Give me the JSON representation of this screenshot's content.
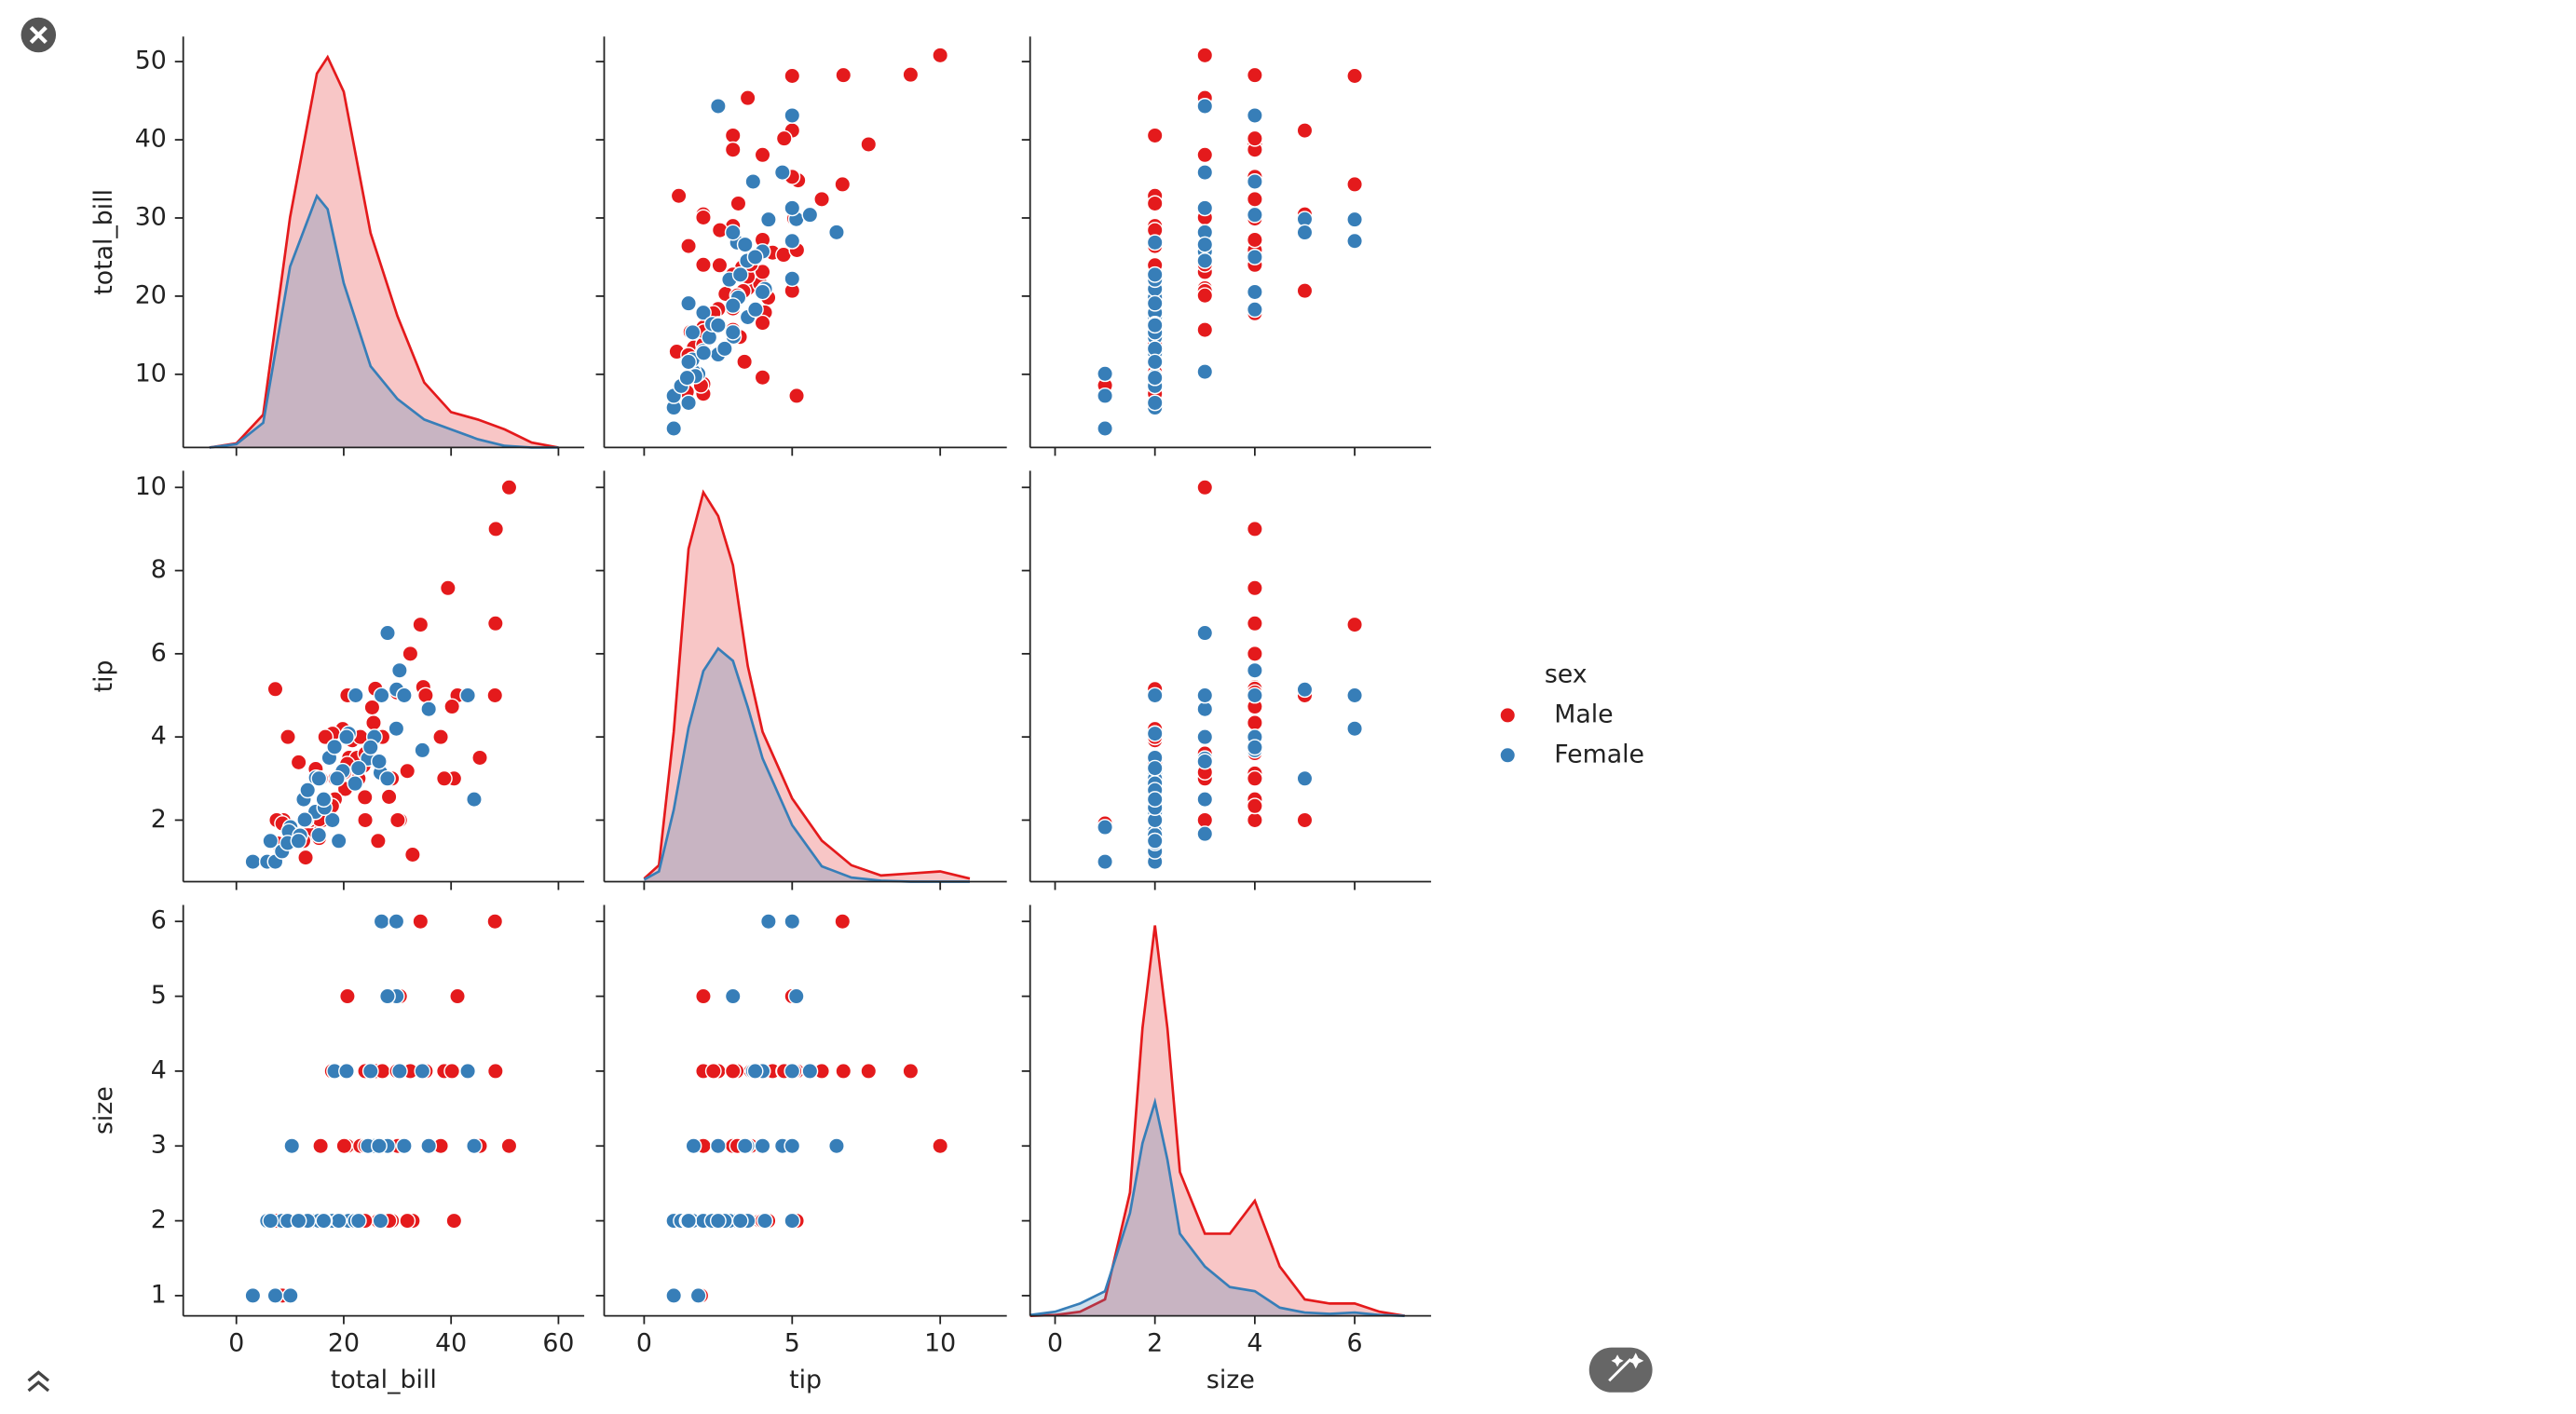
{
  "chart_data": {
    "type": "pairplot",
    "legend_title": "sex",
    "variables": [
      {
        "label": "total_bill",
        "xlim": [
          -9.9,
          64.8
        ],
        "xticks": [
          0,
          20,
          40,
          60
        ],
        "ylim": [
          0.64,
          53.2
        ],
        "yticks": [
          10,
          20,
          30,
          40,
          50
        ],
        "kde_x": [
          -5,
          0,
          5,
          10,
          15,
          17,
          20,
          25,
          30,
          35,
          40,
          45,
          50,
          55,
          60
        ],
        "y2lim": [
          0,
          0.05
        ]
      },
      {
        "label": "tip",
        "xlim": [
          -1.35,
          12.25
        ],
        "xticks": [
          0,
          5,
          10
        ],
        "ylim": [
          0.52,
          10.4
        ],
        "yticks": [
          2,
          4,
          6,
          8,
          10
        ],
        "kde_x": [
          0,
          0.5,
          1,
          1.5,
          2,
          2.5,
          3,
          3.5,
          4,
          5,
          6,
          7,
          8,
          9,
          10,
          11
        ],
        "y2lim": [
          0,
          0.4
        ]
      },
      {
        "label": "size",
        "xlim": [
          -0.5,
          7.53
        ],
        "xticks": [
          0,
          2,
          4,
          6
        ],
        "ylim": [
          0.73,
          6.22
        ],
        "yticks": [
          1,
          2,
          3,
          4,
          5,
          6
        ],
        "kde_x": [
          -0.5,
          0,
          0.5,
          1,
          1.5,
          1.75,
          2,
          2.25,
          2.5,
          3,
          3.5,
          4,
          4.5,
          5,
          5.5,
          6,
          6.5,
          7
        ],
        "y2lim": [
          0,
          1
        ]
      }
    ],
    "series": [
      {
        "name": "Male",
        "color": "#e41a1c",
        "columns": [
          [
            50.81,
            48.33,
            7.25,
            48.27,
            39.42,
            32.4,
            34.81,
            25.56,
            24.59,
            20.29,
            10.34,
            21.01,
            23.68,
            25.29,
            8.77,
            26.88,
            15.04,
            14.78,
            10.27,
            35.26,
            15.42,
            18.43,
            21.58,
            13.42,
            28.97,
            22.49,
            40.55,
            20.69,
            30.46,
            41.19,
            48.17,
            34.3,
            28.44,
            9.6,
            38.07,
            12.9,
            15.69,
            19.81,
            20.65,
            17.92,
            45.35,
            7.74,
            30.06,
            25.89,
            27.2,
            22.76,
            11.61,
            18.35,
            7.51,
            23.1,
            16.58,
            12.46,
            24.01,
            13.81,
            20.08,
            16.0,
            8.58,
            32.83,
            17.81,
            26.41,
            15.48,
            23.95,
            31.85,
            38.73,
            40.17,
            29.93,
            24.06
          ],
          [
            10,
            9,
            5.15,
            6.73,
            7.58,
            6,
            5.2,
            4.34,
            3.61,
            2.75,
            1.66,
            3.5,
            3.31,
            4.71,
            2,
            3.12,
            1.96,
            3.23,
            1.71,
            5,
            1.57,
            3,
            3.92,
            1.68,
            3,
            3.5,
            3,
            5,
            2,
            5,
            5,
            6.7,
            2.56,
            4,
            4,
            1.1,
            3,
            4.19,
            3.35,
            4.08,
            3.5,
            1.44,
            2,
            5.16,
            4,
            3,
            3.39,
            2.5,
            2,
            4,
            4,
            1.5,
            2,
            2,
            3.15,
            2,
            1.92,
            1.17,
            2.34,
            1.5,
            2.02,
            2.55,
            3.18,
            3,
            4.73,
            5.07,
            3.6
          ],
          [
            3,
            4,
            2,
            4,
            4,
            4,
            4,
            4,
            4,
            2,
            3,
            3,
            2,
            4,
            2,
            4,
            2,
            2,
            2,
            4,
            2,
            4,
            2,
            2,
            2,
            2,
            2,
            5,
            5,
            5,
            6,
            6,
            2,
            2,
            3,
            2,
            3,
            2,
            3,
            2,
            3,
            2,
            3,
            4,
            4,
            2,
            2,
            4,
            2,
            3,
            2,
            2,
            4,
            2,
            3,
            2,
            1,
            2,
            4,
            2,
            2,
            2,
            2,
            4,
            4,
            4,
            3
          ]
        ],
        "kde": [
          [
            0,
            0.0005,
            0.004,
            0.028,
            0.0455,
            0.0475,
            0.0433,
            0.0261,
            0.016,
            0.0079,
            0.0043,
            0.0034,
            0.0022,
            0.0006,
            0
          ],
          [
            0.003,
            0.016,
            0.146,
            0.324,
            0.379,
            0.356,
            0.308,
            0.21,
            0.146,
            0.081,
            0.04,
            0.016,
            0.006,
            0.008,
            0.01,
            0.003
          ],
          [
            0,
            0.002,
            0.01,
            0.04,
            0.3,
            0.7,
            0.95,
            0.7,
            0.35,
            0.2,
            0.2,
            0.28,
            0.12,
            0.04,
            0.03,
            0.03,
            0.01,
            0
          ]
        ]
      },
      {
        "name": "Female",
        "color": "#377eb8",
        "columns": [
          [
            3.07,
            5.75,
            7.25,
            10.07,
            8.51,
            10.33,
            14.83,
            15.38,
            17.31,
            18.29,
            19.82,
            22.23,
            29.85,
            26.86,
            27.05,
            29.8,
            44.3,
            43.11,
            35.83,
            34.65,
            30.4,
            25.71,
            28.17,
            9.78,
            11.87,
            13.0,
            16.4,
            20.92,
            12.54,
            14.73,
            18.78,
            24.52,
            22.12,
            15.36,
            12.74,
            17.89,
            31.27,
            9.55,
            13.28,
            19.08,
            22.75,
            11.59,
            16.43,
            20.53,
            26.59,
            16.27,
            6.35,
            28.15,
            25.0
          ],
          [
            1,
            1,
            1,
            1.83,
            1.25,
            1.67,
            3.02,
            3,
            3.5,
            3.76,
            3.18,
            5,
            5.14,
            3.14,
            5,
            4.2,
            2.5,
            5,
            4.67,
            3.68,
            5.6,
            4,
            6.5,
            1.73,
            1.63,
            2,
            2.5,
            4.08,
            2.5,
            2.2,
            3,
            3.48,
            2.88,
            1.64,
            2.01,
            2,
            5,
            1.45,
            2.72,
            1.5,
            3.25,
            1.5,
            2.3,
            4,
            3.41,
            2.5,
            1.5,
            3,
            3.75
          ],
          [
            1,
            2,
            1,
            1,
            2,
            3,
            2,
            2,
            2,
            4,
            2,
            2,
            5,
            2,
            6,
            6,
            3,
            4,
            3,
            4,
            4,
            3,
            3,
            2,
            2,
            2,
            2,
            2,
            2,
            2,
            2,
            3,
            2,
            2,
            2,
            2,
            3,
            2,
            2,
            2,
            2,
            2,
            2,
            4,
            3,
            2,
            2,
            5,
            4
          ]
        ],
        "kde": [
          [
            0,
            0.0004,
            0.003,
            0.022,
            0.0306,
            0.029,
            0.02,
            0.0099,
            0.0059,
            0.0034,
            0.0022,
            0.001,
            0.0002,
            0,
            0
          ],
          [
            0.002,
            0.01,
            0.07,
            0.15,
            0.205,
            0.227,
            0.215,
            0.17,
            0.12,
            0.055,
            0.015,
            0.004,
            0.001,
            0,
            0,
            0
          ],
          [
            0.002,
            0.01,
            0.03,
            0.06,
            0.25,
            0.42,
            0.52,
            0.38,
            0.2,
            0.12,
            0.07,
            0.06,
            0.02,
            0.008,
            0.005,
            0.008,
            0.002,
            0
          ]
        ]
      }
    ]
  }
}
